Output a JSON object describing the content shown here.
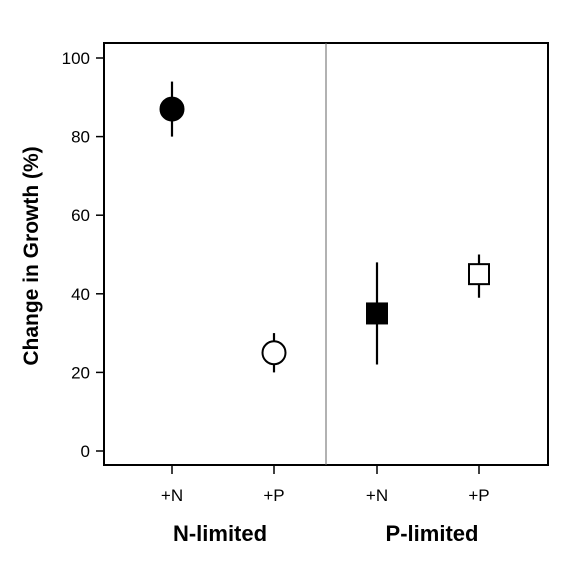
{
  "chart_data": {
    "type": "scatter",
    "ylabel": "Change in Growth (%)",
    "ylim": [
      0,
      100
    ],
    "yticks": [
      0,
      20,
      40,
      60,
      80,
      100
    ],
    "grid": false,
    "groups": [
      {
        "name": "N-limited",
        "points": [
          {
            "x": "+N",
            "y": 87,
            "err_low": 80,
            "err_high": 94,
            "marker": "circle",
            "filled": true
          },
          {
            "x": "+P",
            "y": 25,
            "err_low": 20,
            "err_high": 30,
            "marker": "circle",
            "filled": false
          }
        ]
      },
      {
        "name": "P-limited",
        "points": [
          {
            "x": "+N",
            "y": 35,
            "err_low": 22,
            "err_high": 48,
            "marker": "square",
            "filled": true
          },
          {
            "x": "+P",
            "y": 45,
            "err_low": 39,
            "err_high": 50,
            "marker": "square",
            "filled": false
          }
        ]
      }
    ]
  }
}
